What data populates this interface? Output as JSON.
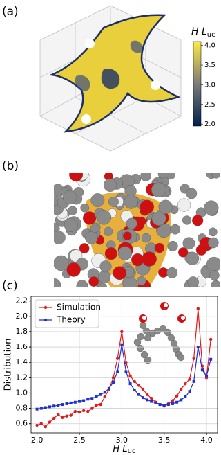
{
  "panel_labels": [
    "(a)",
    "(b)",
    "(c)"
  ],
  "colorbar": {
    "label": "H L",
    "label_sub": "uc",
    "lim": [
      1.95,
      4.1
    ],
    "ticks": [
      {
        "value": 2,
        "label": "2.0"
      },
      2.5,
      {
        "value": 3,
        "label": "3.0"
      },
      3.5,
      {
        "value": 4,
        "label": "4.0"
      }
    ],
    "colors": [
      "#00204c",
      "#7c7b78",
      "#ffe945"
    ]
  },
  "chart_data": {
    "type": "line",
    "xlabel": "H L",
    "xlabel_sub": "uc",
    "ylabel": "Distribution",
    "x": [
      2.0,
      2.05,
      2.1,
      2.15,
      2.2,
      2.25,
      2.3,
      2.35,
      2.4,
      2.45,
      2.5,
      2.55,
      2.6,
      2.65,
      2.7,
      2.75,
      2.8,
      2.85,
      2.9,
      2.95,
      3.0,
      3.05,
      3.1,
      3.15,
      3.2,
      3.25,
      3.3,
      3.35,
      3.4,
      3.45,
      3.5,
      3.55,
      3.6,
      3.65,
      3.7,
      3.75,
      3.8,
      3.85,
      3.9,
      3.95,
      4.0,
      4.05
    ],
    "series": [
      {
        "name": "Simulation",
        "color": "#e31a1c",
        "marker": "circle",
        "values": [
          0.58,
          0.6,
          0.56,
          0.62,
          0.67,
          0.72,
          0.68,
          0.7,
          0.71,
          0.76,
          0.75,
          0.77,
          0.76,
          0.8,
          0.84,
          0.85,
          0.95,
          1.05,
          1.2,
          1.45,
          1.8,
          1.4,
          1.22,
          1.15,
          1.1,
          1.05,
          0.98,
          0.93,
          0.88,
          0.85,
          0.83,
          0.86,
          0.9,
          0.96,
          1.05,
          1.12,
          1.18,
          1.45,
          2.1,
          1.35,
          1.2,
          1.7
        ]
      },
      {
        "name": "Theory",
        "color": "#1f2fd0",
        "marker": "square",
        "values": [
          0.79,
          0.8,
          0.81,
          0.82,
          0.83,
          0.84,
          0.85,
          0.86,
          0.87,
          0.88,
          0.89,
          0.9,
          0.92,
          0.93,
          0.95,
          0.98,
          1.01,
          1.06,
          1.14,
          1.28,
          1.63,
          1.28,
          1.12,
          1.04,
          0.98,
          0.94,
          0.91,
          0.89,
          0.87,
          0.85,
          0.84,
          0.85,
          0.86,
          0.88,
          0.91,
          0.95,
          1.02,
          1.15,
          1.6,
          1.3,
          1.22,
          1.44
        ]
      }
    ],
    "xlim": [
      1.93,
      4.13
    ],
    "ylim": [
      0.48,
      2.26
    ],
    "xticks": [
      {
        "value": 2,
        "label": "2.0"
      },
      2.5,
      {
        "value": 3,
        "label": "3.0"
      },
      3.5,
      {
        "value": 4,
        "label": "4.0"
      }
    ],
    "yticks": [
      0.6,
      0.8,
      {
        "value": 1,
        "label": "1.0"
      },
      1.2,
      1.4,
      1.6,
      1.8,
      {
        "value": 2,
        "label": "2.0"
      },
      2.2
    ],
    "grid": true,
    "legend": "upper-left"
  }
}
